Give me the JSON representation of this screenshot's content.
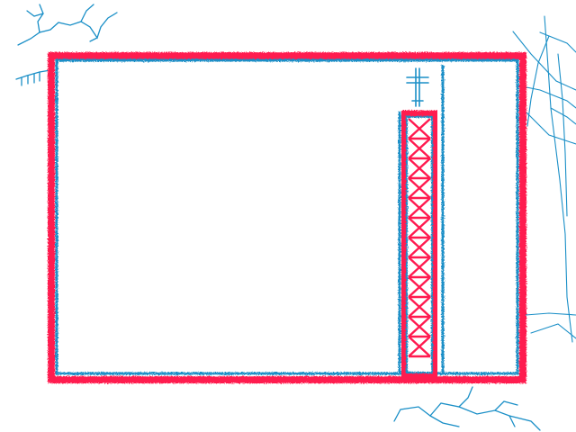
{
  "colors": {
    "background": "#ffffff",
    "frame_red": "#ff1a4f",
    "frame_blue": "#1a8fc7",
    "branch_blue": "#1a8fc7"
  },
  "icons": {
    "scroll_handle": "scroll-handle-icon"
  },
  "scrollbar": {
    "position_fraction": 0.0
  }
}
